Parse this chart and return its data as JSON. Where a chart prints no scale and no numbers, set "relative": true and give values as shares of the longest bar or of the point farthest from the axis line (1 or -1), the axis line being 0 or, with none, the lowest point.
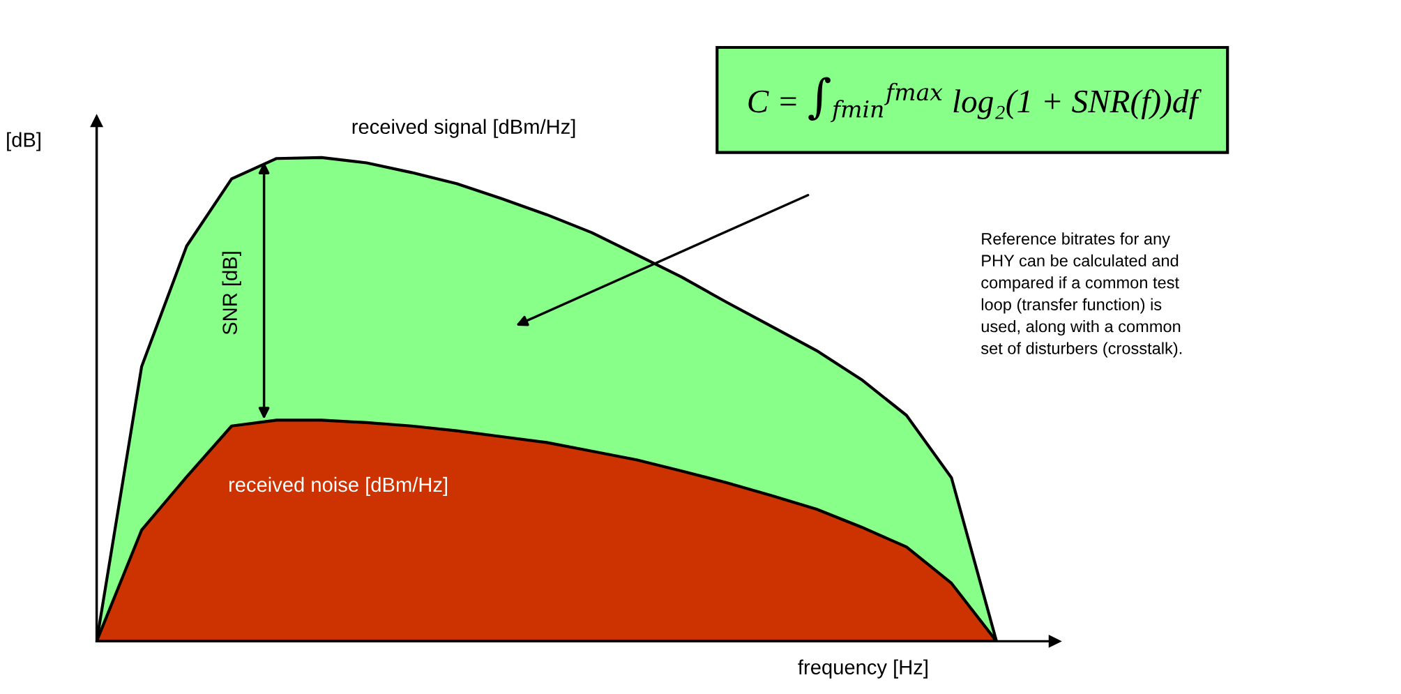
{
  "chart_data": {
    "type": "area",
    "relative": true,
    "xlabel": "frequency [Hz]",
    "ylabel": "[dB]",
    "categories": [
      null,
      null,
      null,
      null,
      null,
      null,
      null,
      null,
      null,
      null,
      null,
      null,
      null,
      null,
      null,
      null,
      null,
      null,
      null,
      null,
      null
    ],
    "series": [
      {
        "name": "received signal [dBm/Hz]",
        "color": "#88ff88",
        "values": [
          0,
          0.568,
          0.817,
          0.956,
          0.998,
          1.0,
          0.989,
          0.969,
          0.946,
          0.915,
          0.882,
          0.845,
          0.799,
          0.753,
          0.701,
          0.651,
          0.601,
          0.541,
          0.467,
          0.338,
          0
        ]
      },
      {
        "name": "received noise [dBm/Hz]",
        "color": "#cc3300",
        "values": [
          0,
          0.23,
          0.34,
          0.445,
          0.457,
          0.457,
          0.452,
          0.445,
          0.435,
          0.423,
          0.411,
          0.393,
          0.375,
          0.352,
          0.328,
          0.301,
          0.273,
          0.236,
          0.195,
          0.12,
          0
        ]
      }
    ],
    "annotations": [
      "SNR [dB]",
      "C = ∫$_{fmin}$$^{fmax}$ log₂(1 + SNR(f))df",
      "Reference bitrates for any\nPHY can be calculated and\ncompared if a common test\nloop (transfer function) is\nused, along with a common\nset of disturbers (crosstalk)."
    ]
  }
}
